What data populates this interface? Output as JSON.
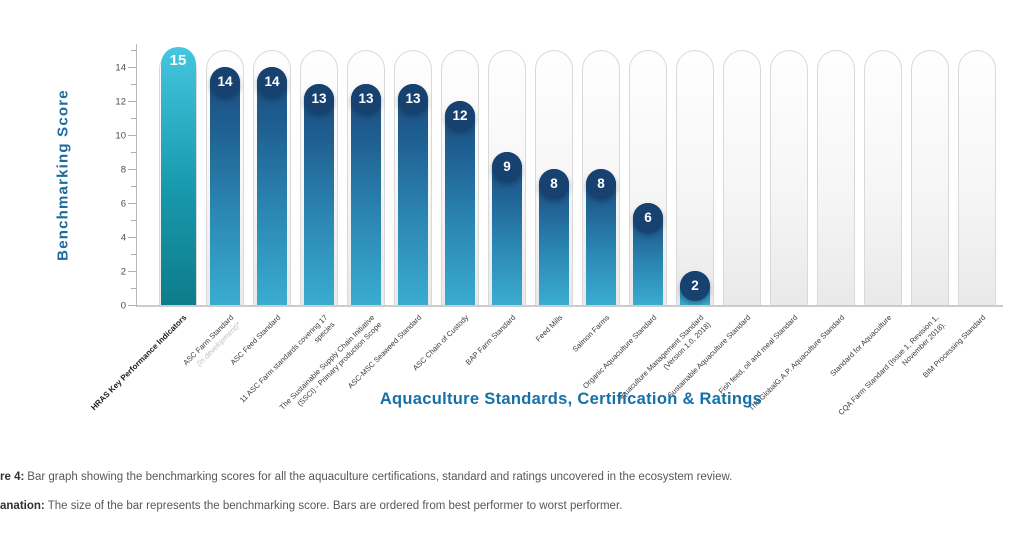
{
  "chart_data": {
    "type": "bar",
    "title": "",
    "xlabel": "Aquaculture Standards, Certification & Ratings",
    "ylabel": "Benchmarking Score",
    "ylim": [
      0,
      15
    ],
    "yticks": [
      0,
      2,
      4,
      6,
      8,
      10,
      12,
      14
    ],
    "grid": false,
    "legend": null,
    "categories": [
      {
        "label": "HRAS Key Performance Indicators",
        "emphasis": true
      },
      {
        "label": "ASC Farm Standard",
        "sublabel": "(in development)*"
      },
      {
        "label": "ASC Feed Standard"
      },
      {
        "label": "11 ASC Farm standards covering 17 species"
      },
      {
        "label": "The Sustainable Supply Chain Initiative (SSCI) - Primary production Scope"
      },
      {
        "label": "ASC-MSC Seaweed Standard"
      },
      {
        "label": "ASC Chain of Custody"
      },
      {
        "label": "BAP Farm Standard"
      },
      {
        "label": "Feed Mills"
      },
      {
        "label": "Salmon Farms"
      },
      {
        "label": "Organic Aquaculture Standard"
      },
      {
        "label": "Aquaculture Management Standard (Version 1.0, 2018)"
      },
      {
        "label": "Sustainable Aquaculture Standard"
      },
      {
        "label": "Fish feed, oil and meal Standard"
      },
      {
        "label": "The GlobalG.A.P. Aquaculture Standard"
      },
      {
        "label": "Standard for Aquaculture"
      },
      {
        "label": "CQA Farm Standard (Issue 1, Revision 1, November 2018)."
      },
      {
        "label": "BIM Processing Standard"
      }
    ],
    "values": [
      15,
      14,
      14,
      13,
      13,
      13,
      12,
      9,
      8,
      8,
      6,
      2,
      0,
      0,
      0,
      0,
      0,
      0
    ],
    "highlight_index": 0,
    "colors": {
      "highlight_bar_top": "#45c6e0",
      "highlight_bar_bottom": "#0d7c8a",
      "bar_cap_navy": "#1a4a7b",
      "bar_bottom_blue": "#3aaccf",
      "badge_navy": "#17416f",
      "value_text": "#ffffff",
      "axis_title_blue": "#1470a8",
      "track_border_gray": "#d9d9d9"
    }
  },
  "captions": [
    {
      "prefix": "re 4:",
      "text": "Bar graph showing the benchmarking scores for all the aquaculture certifications, standard and ratings uncovered in the ecosystem review."
    },
    {
      "prefix": "anation:",
      "text": "The size of the bar represents the benchmarking score. Bars are ordered from best performer to worst performer."
    }
  ]
}
